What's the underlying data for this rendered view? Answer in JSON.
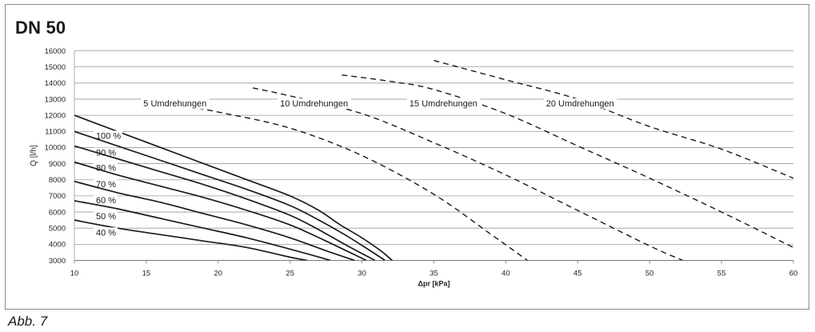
{
  "chart_title": "DN 50",
  "caption": "Abb. 7",
  "chart_data": {
    "type": "line",
    "title": "DN 50",
    "xlabel": "Δpr [kPa]",
    "ylabel": "Q [l/h]",
    "xlim": [
      10,
      60
    ],
    "ylim": [
      3000,
      16000
    ],
    "xticks": [
      10,
      15,
      20,
      25,
      30,
      35,
      40,
      45,
      50,
      55,
      60
    ],
    "yticks": [
      3000,
      4000,
      5000,
      6000,
      7000,
      8000,
      9000,
      10000,
      11000,
      12000,
      13000,
      14000,
      15000,
      16000
    ],
    "grid": "horizontal",
    "series": [
      {
        "name": "100 %",
        "style": "solid",
        "label_pos": [
          11.5,
          10550
        ],
        "points": [
          [
            10,
            12000
          ],
          [
            13,
            11000
          ],
          [
            16,
            10000
          ],
          [
            19,
            9000
          ],
          [
            22,
            8000
          ],
          [
            25,
            7000
          ],
          [
            27,
            6100
          ],
          [
            28.5,
            5200
          ],
          [
            30,
            4400
          ],
          [
            31.3,
            3600
          ],
          [
            32.1,
            3000
          ]
        ]
      },
      {
        "name": "90 %",
        "style": "solid",
        "label_pos": [
          11.5,
          9500
        ],
        "points": [
          [
            10,
            11000
          ],
          [
            13,
            10100
          ],
          [
            16,
            9200
          ],
          [
            19,
            8300
          ],
          [
            22,
            7400
          ],
          [
            25,
            6400
          ],
          [
            27,
            5500
          ],
          [
            28.8,
            4600
          ],
          [
            30.4,
            3700
          ],
          [
            31.6,
            3000
          ]
        ]
      },
      {
        "name": "80 %",
        "style": "solid",
        "label_pos": [
          11.5,
          8550
        ],
        "points": [
          [
            10,
            10100
          ],
          [
            13,
            9300
          ],
          [
            16,
            8500
          ],
          [
            19,
            7700
          ],
          [
            22,
            6800
          ],
          [
            25,
            5800
          ],
          [
            27,
            4900
          ],
          [
            29,
            3900
          ],
          [
            30.9,
            3000
          ]
        ]
      },
      {
        "name": "70 %",
        "style": "solid",
        "label_pos": [
          11.5,
          7550
        ],
        "points": [
          [
            10,
            9100
          ],
          [
            13,
            8300
          ],
          [
            16,
            7600
          ],
          [
            19,
            6900
          ],
          [
            22,
            6100
          ],
          [
            25,
            5200
          ],
          [
            27.5,
            4200
          ],
          [
            30.3,
            3000
          ]
        ]
      },
      {
        "name": "60 %",
        "style": "solid",
        "label_pos": [
          11.5,
          6550
        ],
        "points": [
          [
            10,
            7900
          ],
          [
            13,
            7200
          ],
          [
            16,
            6600
          ],
          [
            19,
            5900
          ],
          [
            22,
            5200
          ],
          [
            25,
            4400
          ],
          [
            27.5,
            3600
          ],
          [
            29.5,
            3000
          ]
        ]
      },
      {
        "name": "50 %",
        "style": "solid",
        "label_pos": [
          11.5,
          5550
        ],
        "points": [
          [
            10,
            6700
          ],
          [
            13,
            6200
          ],
          [
            16,
            5600
          ],
          [
            19,
            5000
          ],
          [
            22,
            4400
          ],
          [
            25,
            3700
          ],
          [
            27.8,
            3000
          ]
        ]
      },
      {
        "name": "40 %",
        "style": "solid",
        "label_pos": [
          11.5,
          4550
        ],
        "points": [
          [
            10,
            5500
          ],
          [
            13,
            5000
          ],
          [
            16,
            4600
          ],
          [
            19,
            4200
          ],
          [
            22,
            3800
          ],
          [
            25,
            3200
          ],
          [
            26.2,
            3000
          ]
        ]
      },
      {
        "name": "5 Umdrehungen",
        "style": "dashed",
        "label_pos": [
          14.8,
          12550
        ],
        "points": [
          [
            15.3,
            13000
          ],
          [
            20,
            12200
          ],
          [
            25,
            11200
          ],
          [
            30,
            9500
          ],
          [
            35,
            7100
          ],
          [
            39,
            4600
          ],
          [
            41.5,
            3000
          ]
        ]
      },
      {
        "name": "10 Umdrehungen",
        "style": "dashed",
        "label_pos": [
          24.3,
          12550
        ],
        "points": [
          [
            22.4,
            13700
          ],
          [
            25,
            13200
          ],
          [
            30,
            12100
          ],
          [
            35,
            10300
          ],
          [
            40,
            8300
          ],
          [
            45,
            6100
          ],
          [
            50,
            3900
          ],
          [
            52.3,
            3000
          ]
        ]
      },
      {
        "name": "15 Umdrehungen",
        "style": "dashed",
        "label_pos": [
          33.3,
          12550
        ],
        "points": [
          [
            28.6,
            14500
          ],
          [
            32,
            14100
          ],
          [
            35,
            13600
          ],
          [
            40,
            12100
          ],
          [
            45,
            10100
          ],
          [
            50,
            8100
          ],
          [
            55,
            6000
          ],
          [
            60,
            3800
          ]
        ]
      },
      {
        "name": "20 Umdrehungen",
        "style": "dashed",
        "label_pos": [
          42.8,
          12550
        ],
        "points": [
          [
            35,
            15400
          ],
          [
            40,
            14200
          ],
          [
            45,
            13000
          ],
          [
            50,
            11300
          ],
          [
            55,
            9900
          ],
          [
            60,
            8100
          ]
        ]
      }
    ]
  }
}
